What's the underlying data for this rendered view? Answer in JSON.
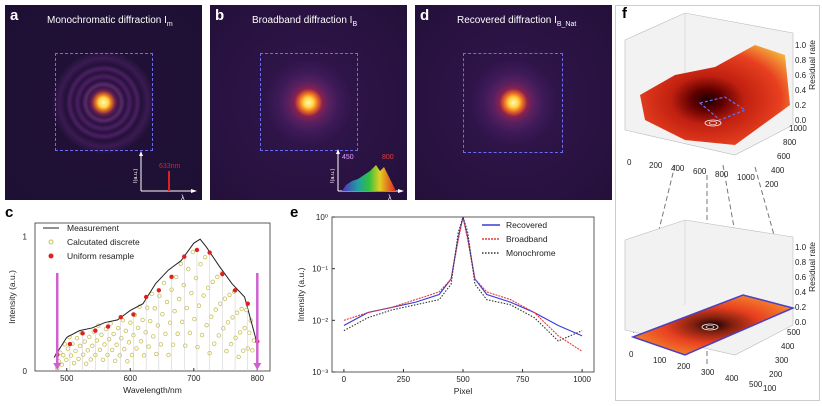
{
  "panels": {
    "a": {
      "label": "a",
      "title": "Monochromatic diffraction I",
      "title_sub": "m",
      "inset_line": "633nm",
      "inset_ylabel": "I(a.u.)",
      "inset_xlabel": "λ"
    },
    "b": {
      "label": "b",
      "title": "Broadband diffraction I",
      "title_sub": "B",
      "inset_low": "450",
      "inset_high": "800",
      "inset_ylabel": "I(a.u.)",
      "inset_xlabel": "λ"
    },
    "d": {
      "label": "d",
      "title": "Recovered diffraction I",
      "title_sub": "B_Nat"
    },
    "c": {
      "label": "c"
    },
    "e": {
      "label": "e"
    },
    "f": {
      "label": "f"
    }
  },
  "colors": {
    "measurement": "#222222",
    "discrete": "#c9c05a",
    "uniform": "#e02020",
    "marker": "#d060d0",
    "recovered": "#3a3ad8",
    "broadband": "#e83a3a",
    "monochrome": "#333333",
    "dashed_box": "#6a6cf0"
  },
  "chart_data": [
    {
      "type": "line",
      "panel": "c",
      "xlabel": "Wavelength/nm",
      "ylabel": "Intensity (a.u.)",
      "xticks": [
        "500",
        "600",
        "700",
        "800"
      ],
      "yticks": [
        "0",
        "1"
      ],
      "xlim": [
        450,
        820
      ],
      "ylim": [
        0,
        1.1
      ],
      "legend": [
        "Measurement",
        "Calcutated discrete",
        "Uniform resample"
      ],
      "series": [
        {
          "name": "Measurement",
          "x": [
            480,
            500,
            520,
            540,
            560,
            580,
            600,
            620,
            640,
            660,
            680,
            700,
            710,
            720,
            740,
            760,
            780,
            800
          ],
          "values": [
            0.1,
            0.25,
            0.3,
            0.32,
            0.36,
            0.38,
            0.45,
            0.5,
            0.65,
            0.75,
            0.82,
            0.95,
            0.98,
            0.92,
            0.78,
            0.65,
            0.55,
            0.2
          ]
        },
        {
          "name": "Uniform resample",
          "x": [
            485,
            505,
            525,
            545,
            565,
            585,
            605,
            625,
            645,
            665,
            685,
            705,
            725,
            745,
            765,
            785,
            800
          ],
          "values": [
            0.12,
            0.2,
            0.28,
            0.3,
            0.33,
            0.4,
            0.42,
            0.55,
            0.6,
            0.7,
            0.85,
            0.9,
            0.88,
            0.72,
            0.6,
            0.5,
            0.22
          ]
        }
      ],
      "markers_x": [
        485,
        800
      ]
    },
    {
      "type": "line",
      "panel": "e",
      "xlabel": "Pixel",
      "ylabel": "Intensity (a.u.)",
      "xticks": [
        "0",
        "250",
        "500",
        "750",
        "1000"
      ],
      "yticks": [
        "10⁰",
        "10⁻¹",
        "10⁻²",
        "10⁻³"
      ],
      "xlim": [
        -50,
        1050
      ],
      "ylim_log": [
        -3,
        0
      ],
      "legend": [
        "Recovered",
        "Broadband",
        "Monochrome"
      ],
      "series": [
        {
          "name": "Recovered",
          "x": [
            0,
            100,
            200,
            300,
            400,
            450,
            480,
            500,
            520,
            550,
            600,
            700,
            800,
            900,
            1000
          ],
          "values": [
            -2.1,
            -1.85,
            -1.75,
            -1.65,
            -1.5,
            -1.2,
            -0.4,
            0,
            -0.4,
            -1.2,
            -1.5,
            -1.65,
            -1.85,
            -2.1,
            -2.3
          ]
        },
        {
          "name": "Broadband",
          "x": [
            0,
            100,
            200,
            300,
            400,
            450,
            480,
            500,
            520,
            550,
            600,
            700,
            800,
            900,
            1000
          ],
          "values": [
            -2.0,
            -1.85,
            -1.75,
            -1.6,
            -1.45,
            -1.2,
            -0.45,
            0,
            -0.45,
            -1.2,
            -1.45,
            -1.6,
            -1.85,
            -2.3,
            -2.6
          ]
        },
        {
          "name": "Monochrome",
          "x": [
            0,
            100,
            200,
            300,
            400,
            450,
            480,
            500,
            520,
            550,
            600,
            700,
            800,
            900,
            1000
          ],
          "values": [
            -2.2,
            -1.95,
            -1.8,
            -1.7,
            -1.6,
            -1.3,
            -0.3,
            0,
            -0.3,
            -1.3,
            -1.6,
            -1.7,
            -1.95,
            -2.4,
            -2.2
          ]
        }
      ]
    },
    {
      "type": "surface",
      "panel": "f-top",
      "zlabel": "Residual rate",
      "zticks": [
        "0.0",
        "0.2",
        "0.4",
        "0.6",
        "0.8",
        "1.0"
      ],
      "xticks": [
        "0",
        "200",
        "400",
        "600",
        "800",
        "1000"
      ],
      "yticks": [
        "200",
        "400",
        "600",
        "800",
        "1000"
      ]
    },
    {
      "type": "surface",
      "panel": "f-bottom",
      "zlabel": "Residual rate",
      "zticks": [
        "0.0",
        "0.2",
        "0.4",
        "0.6",
        "0.8",
        "1.0"
      ],
      "xticks": [
        "0",
        "100",
        "200",
        "300",
        "400",
        "500"
      ],
      "yticks": [
        "100",
        "200",
        "300",
        "400",
        "500"
      ]
    }
  ]
}
